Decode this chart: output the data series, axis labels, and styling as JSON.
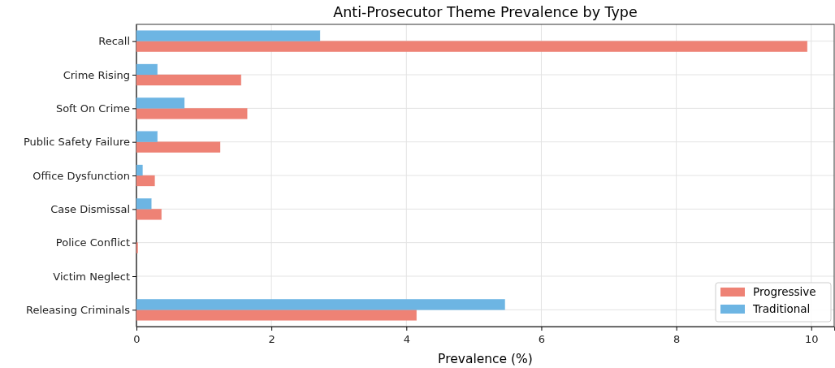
{
  "chart_data": {
    "type": "bar",
    "orientation": "horizontal",
    "title": "Anti-Prosecutor Theme Prevalence by Type",
    "xlabel": "Prevalence (%)",
    "categories": [
      "Recall",
      "Crime Rising",
      "Soft On Crime",
      "Public Safety Failure",
      "Office Dysfunction",
      "Case Dismissal",
      "Police Conflict",
      "Victim Neglect",
      "Releasing Criminals"
    ],
    "series": [
      {
        "name": "Progressive",
        "color": "#ee8275",
        "values": [
          9.94,
          1.55,
          1.64,
          1.24,
          0.27,
          0.37,
          0.02,
          0,
          4.15
        ]
      },
      {
        "name": "Traditional",
        "color": "#6db5e3",
        "values": [
          2.72,
          0.31,
          0.71,
          0.31,
          0.09,
          0.22,
          0,
          0,
          5.46
        ]
      }
    ],
    "xlim": [
      0,
      10.34
    ],
    "xticks": [
      0,
      2,
      4,
      6,
      8,
      10
    ],
    "grid": true,
    "legend": "bottom right"
  }
}
